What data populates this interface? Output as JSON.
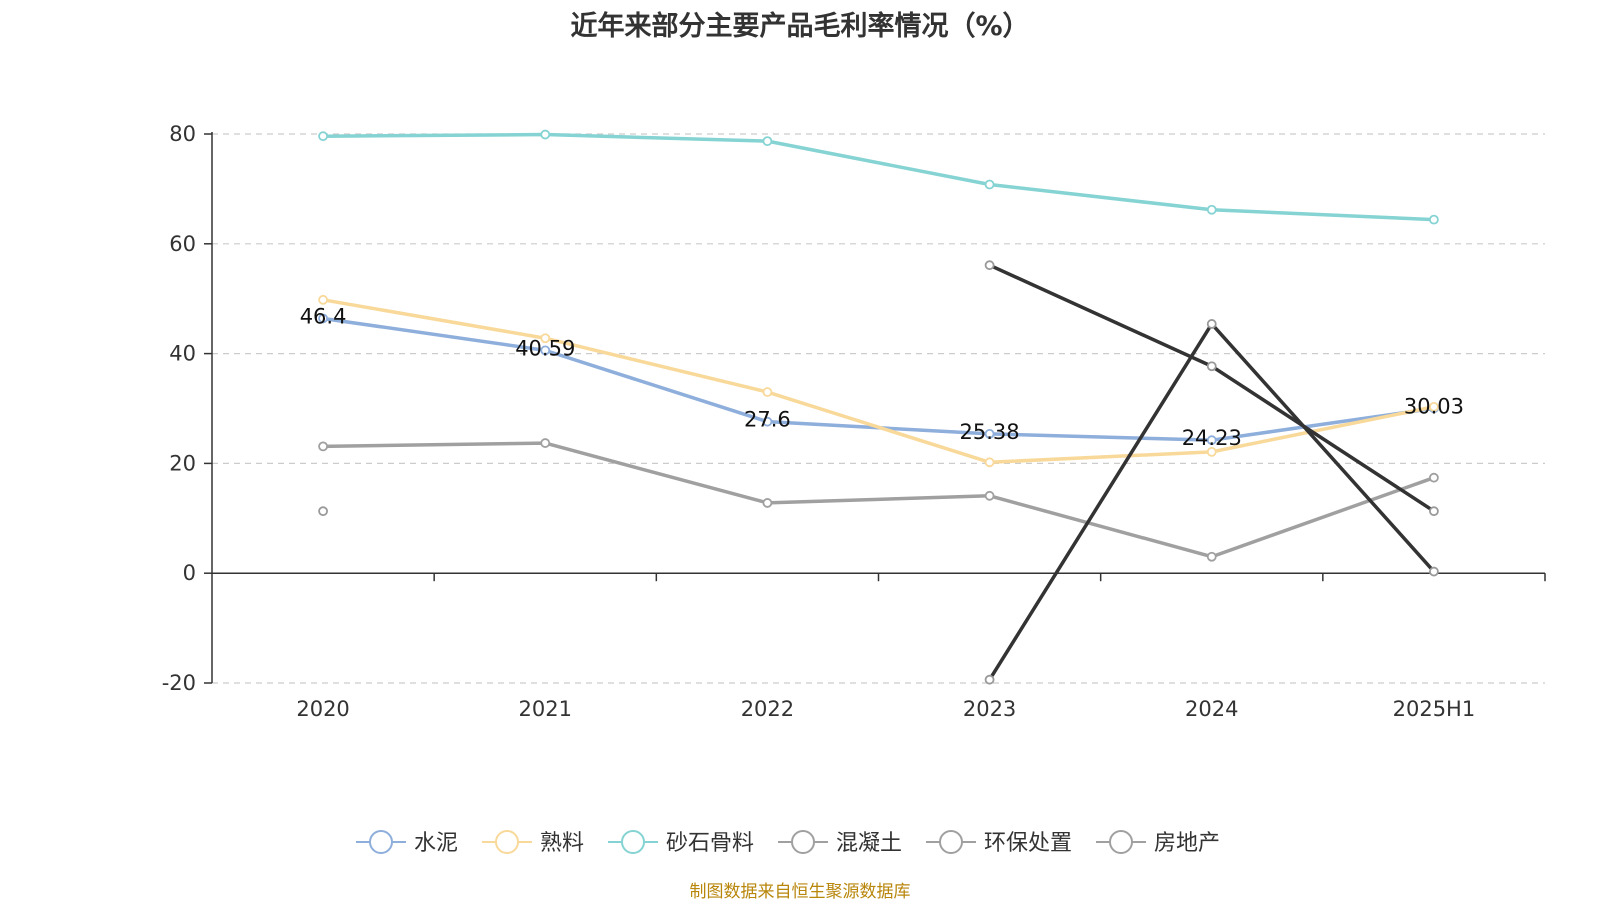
{
  "chart_data": {
    "type": "line",
    "title": "近年来部分主要产品毛利率情况（%）",
    "categories": [
      "2020",
      "2021",
      "2022",
      "2023",
      "2024",
      "2025H1"
    ],
    "yticks": [
      -20,
      0,
      20,
      40,
      60,
      80
    ],
    "ylim": [
      -20,
      80
    ],
    "grid": true,
    "legend_position": "bottom",
    "series": [
      {
        "name": "水泥",
        "color": "#8eaedb",
        "values": [
          46.4,
          40.59,
          27.6,
          25.38,
          24.23,
          30.03
        ],
        "labels": [
          "46.4",
          "40.59",
          "27.6",
          "25.38",
          "24.23",
          "30.03"
        ]
      },
      {
        "name": "熟料",
        "color": "#f8d99a",
        "values": [
          49.8,
          42.8,
          33.0,
          20.2,
          22.1,
          30.3
        ]
      },
      {
        "name": "砂石骨料",
        "color": "#85d3d3",
        "values": [
          79.6,
          79.9,
          78.7,
          70.8,
          66.2,
          64.4
        ]
      },
      {
        "name": "混凝土",
        "color": "#a0a0a0",
        "values": [
          23.1,
          23.7,
          12.8,
          14.1,
          3.0,
          17.4
        ]
      },
      {
        "name": "环保处置",
        "color": "#333333",
        "values": [
          11.3,
          null,
          null,
          -19.4,
          45.4,
          0.3
        ]
      },
      {
        "name": "房地产",
        "color": "#333333",
        "values": [
          null,
          null,
          null,
          56.1,
          37.7,
          11.3
        ]
      }
    ]
  },
  "source_note": "制图数据来自恒生聚源数据库"
}
